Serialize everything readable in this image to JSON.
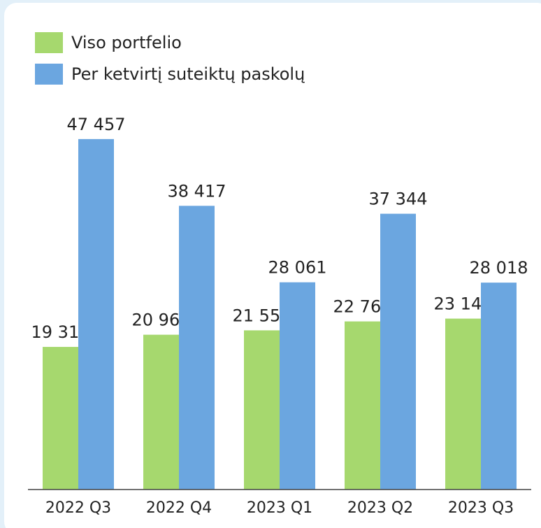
{
  "chart_data": {
    "type": "bar",
    "categories": [
      "2022 Q3",
      "2022 Q4",
      "2023 Q1",
      "2023 Q2",
      "2023 Q3"
    ],
    "series": [
      {
        "name": "Viso portfelio",
        "color": "#a6d86e",
        "values": [
          19314,
          20963,
          21555,
          22767,
          23144
        ],
        "value_labels": [
          "19 314",
          "20 963",
          "21 555",
          "22 767",
          "23 144"
        ]
      },
      {
        "name": "Per ketvirtį suteiktų paskolų",
        "color": "#6ba6e0",
        "values": [
          47457,
          38417,
          28061,
          37344,
          28018
        ],
        "value_labels": [
          "47 457",
          "38 417",
          "28 061",
          "37 344",
          "28 018"
        ]
      }
    ],
    "ylim": [
      0,
      50000
    ]
  }
}
